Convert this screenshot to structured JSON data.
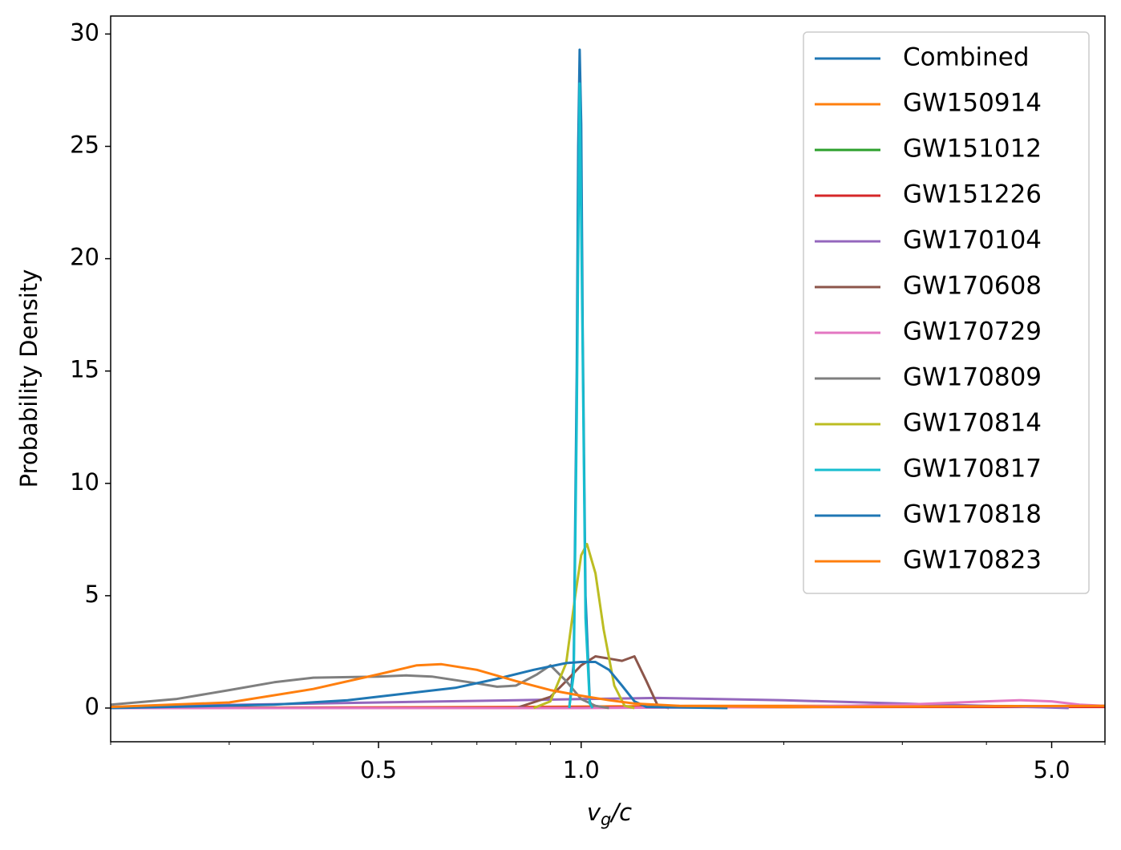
{
  "chart_data": {
    "type": "line",
    "x_label": "vg/c",
    "y_label": "Probability Density",
    "xscale": "log",
    "xlim": [
      0.2,
      6
    ],
    "ylim": [
      -1.5,
      30.8
    ],
    "xticks": [
      0.5,
      {
        "value": 1,
        "label": "1.0"
      },
      {
        "value": 5,
        "label": "5.0"
      }
    ],
    "xminorticks": [
      0.2,
      0.3,
      0.4,
      0.6,
      0.7,
      0.8,
      0.9,
      2,
      3,
      4,
      6
    ],
    "yticks": [
      0,
      5,
      10,
      15,
      20,
      25,
      30
    ],
    "legend": "upper right",
    "series": [
      {
        "name": "Combined",
        "color": "#1f77b4",
        "x": [
          0.96,
          0.975,
          0.985,
          0.99,
          0.995,
          1.0,
          1.005,
          1.015,
          1.03,
          1.04
        ],
        "values": [
          0,
          2,
          15,
          25,
          29.3,
          26,
          17,
          5,
          0.3,
          0
        ]
      },
      {
        "name": "GW150914",
        "color": "#ff7f0e",
        "x": [
          0.2,
          0.8,
          1.5,
          3,
          6
        ],
        "values": [
          0,
          0.05,
          0.1,
          0.1,
          0.08
        ]
      },
      {
        "name": "GW151012",
        "color": "#2ca02c",
        "x": [
          0.2,
          1,
          2,
          4,
          6
        ],
        "values": [
          0,
          0.02,
          0.05,
          0.08,
          0.1
        ]
      },
      {
        "name": "GW151226",
        "color": "#d62728",
        "x": [
          0.2,
          1,
          3,
          6
        ],
        "values": [
          0,
          0.03,
          0.05,
          0.05
        ]
      },
      {
        "name": "GW170104",
        "color": "#9467bd",
        "x": [
          0.2,
          0.5,
          0.8,
          1.0,
          1.3,
          2,
          3,
          4,
          5,
          5.3
        ],
        "values": [
          0.05,
          0.25,
          0.35,
          0.4,
          0.45,
          0.35,
          0.2,
          0.1,
          0.02,
          0
        ]
      },
      {
        "name": "GW170608",
        "color": "#8c564b",
        "x": [
          0.8,
          0.9,
          0.95,
          1.0,
          1.05,
          1.1,
          1.15,
          1.2,
          1.25,
          1.3,
          1.35
        ],
        "values": [
          0,
          0.5,
          1.2,
          1.9,
          2.3,
          2.2,
          2.1,
          2.3,
          1.2,
          0.1,
          0
        ]
      },
      {
        "name": "GW170729",
        "color": "#e377c2",
        "x": [
          0.2,
          1,
          2,
          3,
          4,
          4.5,
          5,
          5.5,
          6
        ],
        "values": [
          0,
          0,
          0.05,
          0.15,
          0.3,
          0.35,
          0.3,
          0.15,
          0.1
        ]
      },
      {
        "name": "GW170809",
        "color": "#7f7f7f",
        "x": [
          0.2,
          0.25,
          0.3,
          0.35,
          0.4,
          0.5,
          0.55,
          0.6,
          0.7,
          0.75,
          0.8,
          0.86,
          0.9,
          0.95,
          1.0,
          1.05,
          1.1
        ],
        "values": [
          0.15,
          0.4,
          0.8,
          1.15,
          1.35,
          1.4,
          1.45,
          1.4,
          1.1,
          0.95,
          1.0,
          1.5,
          1.9,
          1.2,
          0.4,
          0.1,
          0
        ]
      },
      {
        "name": "GW170814",
        "color": "#bcbd22",
        "x": [
          0.85,
          0.9,
          0.95,
          0.98,
          1.0,
          1.02,
          1.05,
          1.08,
          1.12,
          1.16,
          1.2
        ],
        "values": [
          0,
          0.3,
          2,
          5,
          6.8,
          7.3,
          6,
          3.5,
          1,
          0.1,
          0
        ]
      },
      {
        "name": "GW170817",
        "color": "#17becf",
        "x": [
          0.96,
          0.975,
          0.985,
          0.995,
          1.005,
          1.015,
          1.03,
          1.04
        ],
        "values": [
          0,
          1.5,
          13,
          27.8,
          16,
          4,
          0.2,
          0
        ]
      },
      {
        "name": "GW170818",
        "color": "#1f77b4",
        "x": [
          0.2,
          0.35,
          0.45,
          0.55,
          0.65,
          0.75,
          0.85,
          0.95,
          1.0,
          1.05,
          1.1,
          1.15,
          1.2,
          1.25,
          1.65
        ],
        "values": [
          0,
          0.15,
          0.35,
          0.65,
          0.9,
          1.3,
          1.7,
          2.0,
          2.05,
          2.05,
          1.7,
          1.0,
          0.3,
          0.05,
          0
        ]
      },
      {
        "name": "GW170823",
        "color": "#ff7f0e",
        "x": [
          0.2,
          0.3,
          0.4,
          0.5,
          0.57,
          0.62,
          0.7,
          0.8,
          0.9,
          1.0,
          1.1,
          1.2,
          1.4,
          2,
          4,
          6
        ],
        "values": [
          0.05,
          0.25,
          0.85,
          1.5,
          1.9,
          1.95,
          1.7,
          1.2,
          0.8,
          0.55,
          0.35,
          0.2,
          0.1,
          0.05,
          0.08,
          0.1
        ]
      }
    ]
  }
}
